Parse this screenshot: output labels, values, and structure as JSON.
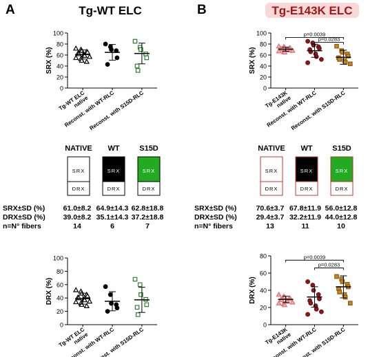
{
  "panels": [
    {
      "letter": "A",
      "title": "Tg-WT ELC",
      "title_color": "#000000",
      "title_glow": "",
      "categories": [
        "Tg-WT ELC native",
        "Reconst. with WT-RLC",
        "Reconst. with S15D-RLC"
      ],
      "category_lines": [
        [
          "Tg-WT ELC",
          "native"
        ],
        [
          "Reconst. with WT-RLC"
        ],
        [
          "Reconst. with S15D-RLC"
        ]
      ],
      "marker_shapes": [
        "triangle",
        "circle",
        "square"
      ],
      "marker_fill": [
        "#ffffff",
        "#000000",
        "#ffffff"
      ],
      "marker_stroke": [
        "#000000",
        "#000000",
        "#2e7d32"
      ],
      "boxes": [
        {
          "label": "NATIVE",
          "top_color": "#ffffff",
          "top_text": "SRX",
          "bottom_text": "DRX",
          "top_text_color": "#000000"
        },
        {
          "label": "WT",
          "top_color": "#000000",
          "top_text": "SRX",
          "bottom_text": "DRX",
          "top_text_color": "#ffffff"
        },
        {
          "label": "S15D",
          "top_color": "#22aa22",
          "top_text": "SRX",
          "bottom_text": "DRX",
          "top_text_color": "#ffffff"
        }
      ],
      "box_border": "#000000",
      "stats": {
        "rows": [
          {
            "label": "SRX±SD (%)",
            "values": [
              "61.0±8.2",
              "64.9±14.3",
              "62.8±18.8"
            ]
          },
          {
            "label": "DRX±SD (%)",
            "values": [
              "39.0±8.2",
              "35.1±14.3",
              "37.2±18.8"
            ]
          },
          {
            "label": "n=N° fibers",
            "values": [
              "14",
              "6",
              "7"
            ]
          }
        ]
      }
    },
    {
      "letter": "B",
      "title": "Tg-E143K ELC",
      "title_color": "#a01818",
      "title_glow": "#f4b8b8",
      "categories": [
        "Tg-E143K native",
        "Reconst. with WT-RLC",
        "Reconst. with S15D-RLC"
      ],
      "category_lines": [
        [
          "Tg-E143K",
          "native"
        ],
        [
          "Reconst. with WT-RLC"
        ],
        [
          "Reconst. with S15D-RLC"
        ]
      ],
      "marker_shapes": [
        "triangle",
        "circle",
        "square"
      ],
      "marker_fill": [
        "#f6b0b0",
        "#8b1a1a",
        "#c68a1e"
      ],
      "marker_stroke": [
        "#e07070",
        "#6b0e0e",
        "#8a5a10"
      ],
      "boxes": [
        {
          "label": "NATIVE",
          "top_color": "#ffffff",
          "top_text": "SRX",
          "bottom_text": "DRX",
          "top_text_color": "#000000"
        },
        {
          "label": "WT",
          "top_color": "#000000",
          "top_text": "SRX",
          "bottom_text": "DRX",
          "top_text_color": "#ffffff"
        },
        {
          "label": "S15D",
          "top_color": "#22aa22",
          "top_text": "SRX",
          "bottom_text": "DRX",
          "top_text_color": "#ffffff"
        }
      ],
      "box_border": "#cc3333",
      "stats": {
        "rows": [
          {
            "label": "SRX±SD (%)",
            "values": [
              "70.6±3.7",
              "67.8±11.9",
              "56.0±12.8"
            ]
          },
          {
            "label": "DRX±SD (%)",
            "values": [
              "29.4±3.7",
              "32.2±11.9",
              "44.0±12.8"
            ]
          },
          {
            "label": "n=N° fibers",
            "values": [
              "13",
              "11",
              "10"
            ]
          }
        ]
      }
    }
  ],
  "chart_data": [
    {
      "type": "scatter",
      "panel": "A",
      "ylabel": "SRX (%)",
      "ylim": [
        0,
        100
      ],
      "yticks": [
        0,
        20,
        40,
        60,
        80,
        100
      ],
      "series": [
        {
          "values": [
            72,
            70,
            68,
            66,
            65,
            63,
            62,
            60,
            59,
            57,
            55,
            53,
            50,
            48
          ],
          "mean": 61.0,
          "sd": 8.2
        },
        {
          "values": [
            80,
            75,
            70,
            68,
            55,
            43
          ],
          "mean": 64.9,
          "sd": 14.3
        },
        {
          "values": [
            85,
            74,
            70,
            62,
            55,
            40,
            32
          ],
          "mean": 62.8,
          "sd": 18.8
        }
      ],
      "brackets": []
    },
    {
      "type": "scatter",
      "panel": "A",
      "ylabel": "DRX (%)",
      "ylim": [
        0,
        100
      ],
      "yticks": [
        0,
        20,
        40,
        60,
        80,
        100
      ],
      "series": [
        {
          "values": [
            52,
            50,
            47,
            45,
            43,
            41,
            40,
            38,
            37,
            35,
            34,
            32,
            30,
            28
          ],
          "mean": 39.0,
          "sd": 8.2
        },
        {
          "values": [
            57,
            45,
            32,
            30,
            25,
            20
          ],
          "mean": 35.1,
          "sd": 14.3
        },
        {
          "values": [
            68,
            60,
            45,
            38,
            30,
            26,
            15
          ],
          "mean": 37.2,
          "sd": 18.8
        }
      ],
      "brackets": []
    },
    {
      "type": "scatter",
      "panel": "B",
      "ylabel": "SRX (%)",
      "ylim": [
        0,
        100
      ],
      "yticks": [
        0,
        20,
        40,
        60,
        80,
        100
      ],
      "series": [
        {
          "values": [
            76,
            75,
            74,
            73,
            72,
            71,
            71,
            70,
            69,
            68,
            67,
            66,
            65
          ],
          "mean": 70.6,
          "sd": 3.7
        },
        {
          "values": [
            85,
            82,
            78,
            75,
            72,
            70,
            66,
            62,
            57,
            52,
            46
          ],
          "mean": 67.8,
          "sd": 11.9
        },
        {
          "values": [
            76,
            68,
            65,
            62,
            58,
            55,
            52,
            50,
            47,
            44
          ],
          "mean": 56.0,
          "sd": 12.8
        }
      ],
      "brackets": [
        {
          "from": 0,
          "to": 2,
          "y": 92,
          "label": "p=0.0039"
        },
        {
          "from": 1,
          "to": 2,
          "y": 83,
          "label": "p=0.0283"
        }
      ]
    },
    {
      "type": "scatter",
      "panel": "B",
      "ylabel": "DRX (%)",
      "ylim": [
        0,
        80
      ],
      "yticks": [
        0,
        20,
        40,
        60,
        80
      ],
      "series": [
        {
          "values": [
            35,
            33,
            32,
            31,
            30,
            29,
            29,
            28,
            27,
            26,
            25,
            24,
            23
          ],
          "mean": 29.4,
          "sd": 3.7
        },
        {
          "values": [
            50,
            46,
            40,
            35,
            30,
            28,
            25,
            22,
            18,
            15,
            12
          ],
          "mean": 32.2,
          "sd": 11.9
        },
        {
          "values": [
            56,
            53,
            50,
            47,
            44,
            42,
            38,
            35,
            32,
            25
          ],
          "mean": 44.0,
          "sd": 12.8
        }
      ],
      "brackets": [
        {
          "from": 0,
          "to": 2,
          "y": 75,
          "label": "p=0.0039"
        },
        {
          "from": 1,
          "to": 2,
          "y": 66,
          "label": "p=0.0283"
        }
      ]
    }
  ]
}
